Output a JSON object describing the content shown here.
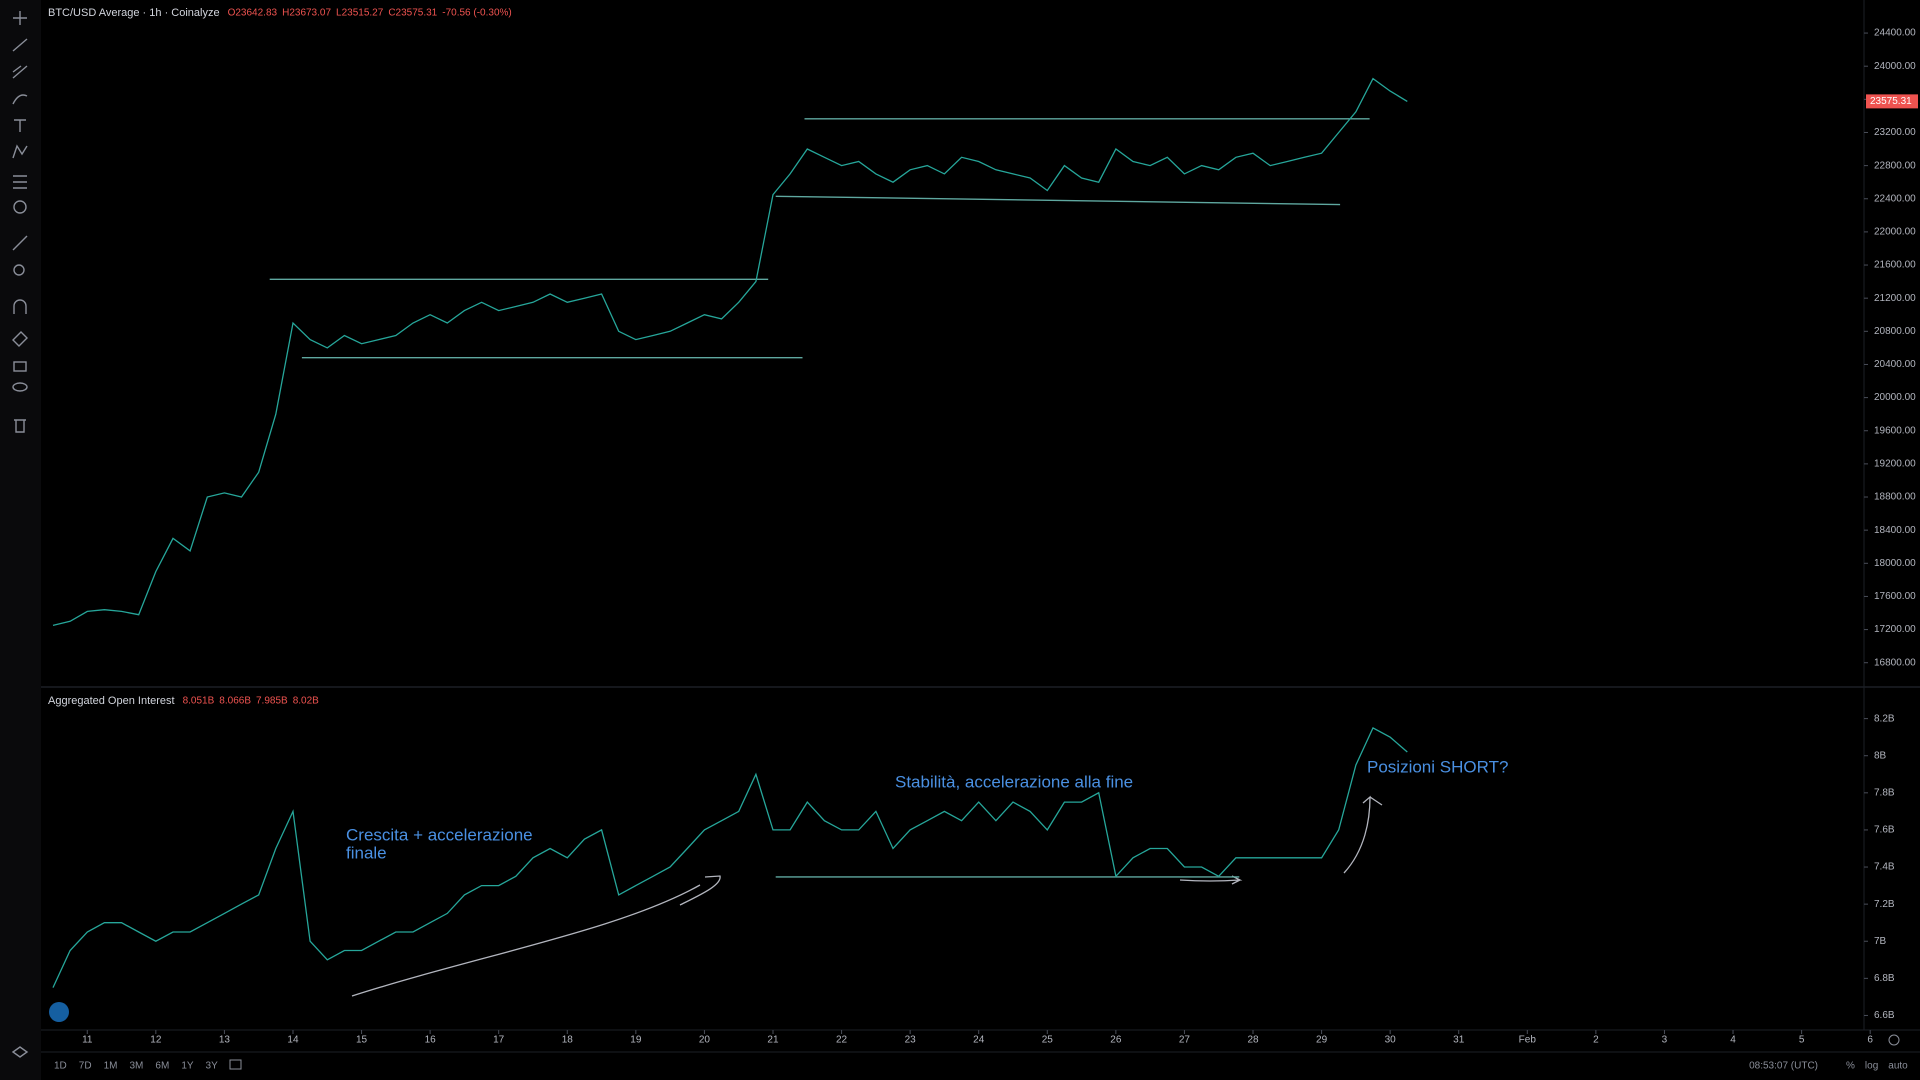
{
  "chart_data": [
    {
      "type": "line",
      "title": "BTC/USD Average · 1h · Coinalyze",
      "legend_values": [
        "O23642.83",
        "H23673.07",
        "L23515.27",
        "C23575.31",
        "-70.56 (-0.30%)"
      ],
      "color": "#26a69a",
      "xlim": [
        10.34,
        36.91
      ],
      "ylim": [
        16519,
        24799
      ],
      "yticks": [
        {
          "value": 16800,
          "label": "16800.00"
        },
        {
          "value": 17200,
          "label": "17200.00"
        },
        {
          "value": 17600,
          "label": "17600.00"
        },
        {
          "value": 18000,
          "label": "18000.00"
        },
        {
          "value": 18400,
          "label": "18400.00"
        },
        {
          "value": 18800,
          "label": "18800.00"
        },
        {
          "value": 19200,
          "label": "19200.00"
        },
        {
          "value": 19600,
          "label": "19600.00"
        },
        {
          "value": 20000,
          "label": "20000.00"
        },
        {
          "value": 20400,
          "label": "20400.00"
        },
        {
          "value": 20800,
          "label": "20800.00"
        },
        {
          "value": 21200,
          "label": "21200.00"
        },
        {
          "value": 21600,
          "label": "21600.00"
        },
        {
          "value": 22000,
          "label": "22000.00"
        },
        {
          "value": 22400,
          "label": "22400.00"
        },
        {
          "value": 22800,
          "label": "22800.00"
        },
        {
          "value": 23200,
          "label": "23200.00"
        },
        {
          "value": 23600,
          "label": "23600.00"
        },
        {
          "value": 24000,
          "label": "24000.00"
        },
        {
          "value": 24400,
          "label": "24400.00"
        }
      ],
      "x": [
        10.5,
        10.75,
        11,
        11.25,
        11.5,
        11.75,
        12,
        12.25,
        12.5,
        12.75,
        13,
        13.25,
        13.5,
        13.75,
        14,
        14.25,
        14.5,
        14.75,
        15,
        15.25,
        15.5,
        15.75,
        16,
        16.25,
        16.5,
        16.75,
        17,
        17.25,
        17.5,
        17.75,
        18,
        18.25,
        18.5,
        18.75,
        19,
        19.25,
        19.5,
        19.75,
        20,
        20.25,
        20.5,
        20.75,
        21,
        21.25,
        21.5,
        21.75,
        22,
        22.25,
        22.5,
        22.75,
        23,
        23.25,
        23.5,
        23.75,
        24,
        24.25,
        24.5,
        24.75,
        25,
        25.25,
        25.5,
        25.75,
        26,
        26.25,
        26.5,
        26.75,
        27,
        27.25,
        27.5,
        27.75,
        28,
        28.25,
        28.5,
        28.75,
        29,
        29.25,
        29.5,
        29.75,
        30,
        30.25
      ],
      "values": [
        17250,
        17300,
        17420,
        17440,
        17420,
        17380,
        17900,
        18300,
        18150,
        18800,
        18850,
        18800,
        19100,
        19800,
        20900,
        20700,
        20600,
        20750,
        20650,
        20700,
        20750,
        20900,
        21000,
        20900,
        21050,
        21150,
        21050,
        21100,
        21150,
        21250,
        21150,
        21200,
        21250,
        20800,
        20700,
        20750,
        20800,
        20900,
        21000,
        20950,
        21150,
        21400,
        22450,
        22700,
        23000,
        22900,
        22800,
        22850,
        22700,
        22600,
        22750,
        22800,
        22700,
        22900,
        22850,
        22750,
        22700,
        22650,
        22500,
        22800,
        22650,
        22600,
        23000,
        22850,
        22800,
        22900,
        22700,
        22800,
        22750,
        22900,
        22950,
        22800,
        22850,
        22900,
        22950,
        23200,
        23450,
        23850,
        23700,
        23575.31
      ],
      "last_price": 23575.31,
      "last_price_color": "#ef5350",
      "drawings_color": "#5fa8a0",
      "drawings": [
        {
          "x": [
            13.66,
            20.93
          ],
          "y": [
            21428,
            21428
          ]
        },
        {
          "x": [
            14.13,
            21.43
          ],
          "y": [
            20481,
            20481
          ]
        },
        {
          "x": [
            21.46,
            29.7
          ],
          "y": [
            23365,
            23365
          ]
        },
        {
          "x": [
            21.04,
            29.27
          ],
          "y": [
            22430,
            22330
          ]
        }
      ]
    },
    {
      "type": "line",
      "title": "Aggregated Open Interest",
      "legend_values": [
        "8.051B",
        "8.066B",
        "7.985B",
        "8.02B"
      ],
      "color": "#26a69a",
      "xlim": [
        10.34,
        36.91
      ],
      "ylim": [
        6.527,
        8.365
      ],
      "yticks": [
        {
          "value": 6.6,
          "label": "6.6B"
        },
        {
          "value": 6.8,
          "label": "6.8B"
        },
        {
          "value": 7,
          "label": "7B"
        },
        {
          "value": 7.2,
          "label": "7.2B"
        },
        {
          "value": 7.4,
          "label": "7.4B"
        },
        {
          "value": 7.6,
          "label": "7.6B"
        },
        {
          "value": 7.8,
          "label": "7.8B"
        },
        {
          "value": 8,
          "label": "8B"
        },
        {
          "value": 8.2,
          "label": "8.2B"
        }
      ],
      "xticks": [
        11,
        12,
        13,
        14,
        15,
        16,
        17,
        18,
        19,
        20,
        21,
        22,
        23,
        24,
        25,
        26,
        27,
        28,
        29,
        30,
        31,
        {
          "value": 32,
          "label": "Feb"
        },
        {
          "value": 33,
          "label": "2"
        },
        {
          "value": 34,
          "label": "3"
        },
        {
          "value": 35,
          "label": "4"
        },
        {
          "value": 36,
          "label": "5"
        },
        {
          "value": 37,
          "label": "6"
        }
      ],
      "x": [
        10.5,
        10.75,
        11,
        11.25,
        11.5,
        11.75,
        12,
        12.25,
        12.5,
        12.75,
        13,
        13.25,
        13.5,
        13.75,
        14,
        14.25,
        14.5,
        14.75,
        15,
        15.25,
        15.5,
        15.75,
        16,
        16.25,
        16.5,
        16.75,
        17,
        17.25,
        17.5,
        17.75,
        18,
        18.25,
        18.5,
        18.75,
        19,
        19.25,
        19.5,
        19.75,
        20,
        20.25,
        20.5,
        20.75,
        21,
        21.25,
        21.5,
        21.75,
        22,
        22.25,
        22.5,
        22.75,
        23,
        23.25,
        23.5,
        23.75,
        24,
        24.25,
        24.5,
        24.75,
        25,
        25.25,
        25.5,
        25.75,
        26,
        26.25,
        26.5,
        26.75,
        27,
        27.25,
        27.5,
        27.75,
        28,
        28.25,
        28.5,
        28.75,
        29,
        29.25,
        29.5,
        29.75,
        30,
        30.25
      ],
      "values": [
        6.75,
        6.95,
        7.05,
        7.1,
        7.1,
        7.05,
        7.0,
        7.05,
        7.05,
        7.1,
        7.15,
        7.2,
        7.25,
        7.5,
        7.7,
        7.0,
        6.9,
        6.95,
        6.95,
        7.0,
        7.05,
        7.05,
        7.1,
        7.15,
        7.25,
        7.3,
        7.3,
        7.35,
        7.45,
        7.5,
        7.45,
        7.55,
        7.6,
        7.25,
        7.3,
        7.35,
        7.4,
        7.5,
        7.6,
        7.65,
        7.7,
        7.9,
        7.6,
        7.6,
        7.75,
        7.65,
        7.6,
        7.6,
        7.7,
        7.5,
        7.6,
        7.65,
        7.7,
        7.65,
        7.75,
        7.65,
        7.75,
        7.7,
        7.6,
        7.75,
        7.75,
        7.8,
        7.35,
        7.45,
        7.5,
        7.5,
        7.4,
        7.4,
        7.35,
        7.45,
        7.45,
        7.45,
        7.45,
        7.45,
        7.45,
        7.6,
        7.95,
        8.15,
        8.1,
        8.02
      ],
      "drawings_color": "#5fa8a0",
      "drawings": [
        {
          "x": [
            21.04,
            27.8
          ],
          "y": [
            7.347,
            7.347
          ]
        }
      ],
      "annotations": [
        {
          "lines": [
            "Crescita + accelerazione",
            "finale"
          ]
        },
        {
          "lines": [
            "Stabilità, accelerazione alla fine"
          ]
        },
        {
          "lines": [
            "Posizioni SHORT?"
          ]
        }
      ]
    }
  ],
  "ui": {
    "timeframes": [
      "1D",
      "7D",
      "1M",
      "3M",
      "6M",
      "1Y",
      "3Y"
    ],
    "clock": "08:53:07 (UTC)",
    "scale_options": [
      "%",
      "log",
      "auto"
    ]
  }
}
